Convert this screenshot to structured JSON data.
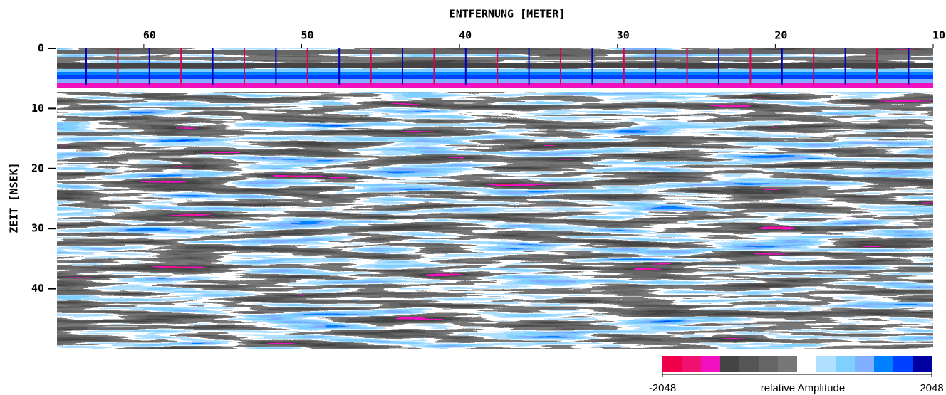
{
  "chart_data": {
    "type": "radargram",
    "title": "ENTFERNUNG [METER]",
    "y_label": "ZEIT [NSEK]",
    "xlim": [
      65.5,
      10
    ],
    "xticks": [
      60,
      50,
      40,
      30,
      20,
      10
    ],
    "ylim": [
      0,
      50
    ],
    "yticks": [
      0,
      10,
      20,
      30,
      40
    ],
    "colorbar": {
      "label": "relative Amplitude",
      "range": [
        -2048,
        2048
      ],
      "colors": [
        "#f0004a",
        "#f01070",
        "#f010c0",
        "#444444",
        "#555555",
        "#666666",
        "#777777",
        "#ffffff",
        "#b0e0ff",
        "#80d0ff",
        "#80b0ff",
        "#0080ff",
        "#0040ff",
        "#0000a0"
      ]
    }
  }
}
